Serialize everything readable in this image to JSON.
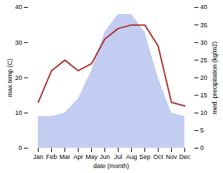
{
  "chart_data": {
    "type": "line",
    "categories": [
      "Jan",
      "Feb",
      "Mar",
      "Apr",
      "May",
      "Jun",
      "Jul",
      "Aug",
      "Sep",
      "Oct",
      "Nov",
      "Dec"
    ],
    "xlabel": "date (month)",
    "ylabel": "max temp (C)",
    "y2label": "med. precipitation (kg/m2)",
    "ylim": [
      0,
      40
    ],
    "yticks": [
      0,
      10,
      20,
      30,
      40
    ],
    "y2lim": [
      0,
      40
    ],
    "y2ticks": [
      0,
      5,
      10,
      15,
      20,
      25,
      30,
      35,
      40
    ],
    "grid": false,
    "series": [
      {
        "type": "area",
        "axis": "y2",
        "color": "#b8c4ee",
        "values": [
          9,
          9,
          10,
          14,
          22,
          33,
          38,
          38,
          33,
          20,
          10,
          9
        ]
      },
      {
        "type": "line",
        "color": "#b03030",
        "values": [
          13,
          22,
          25,
          22,
          24,
          31,
          34,
          35,
          35,
          29,
          13,
          12
        ]
      }
    ]
  }
}
